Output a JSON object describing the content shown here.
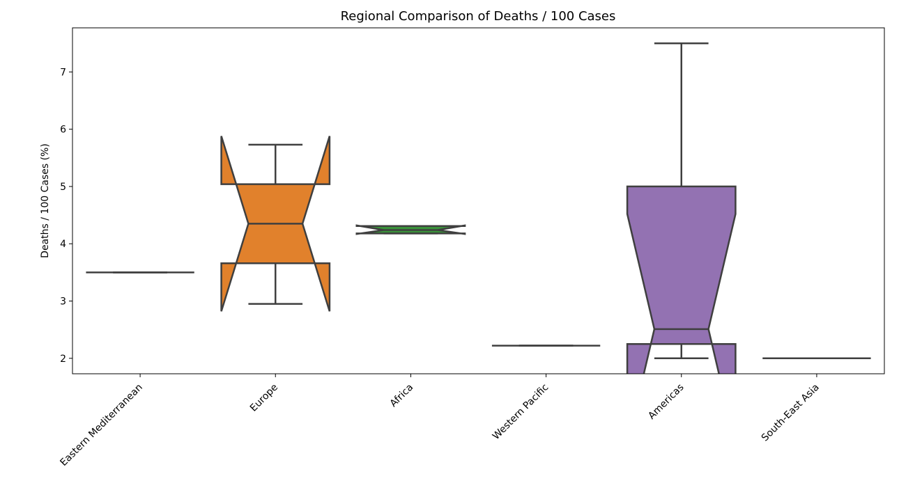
{
  "chart_data": {
    "type": "box",
    "notched": true,
    "title": "Regional Comparison of Deaths / 100 Cases",
    "xlabel": "",
    "ylabel": "Deaths / 100 Cases (%)",
    "ylim": [
      1.73,
      7.77
    ],
    "yticks": [
      2,
      3,
      4,
      5,
      6,
      7
    ],
    "grid": false,
    "categories": [
      "Eastern Mediterranean",
      "Europe",
      "Africa",
      "Western Pacific",
      "Americas",
      "South-East Asia"
    ],
    "boxes": [
      {
        "name": "Eastern Mediterranean",
        "color": "#3a75b0",
        "whisker_low": 3.5,
        "q1": 3.5,
        "median": 3.5,
        "q3": 3.5,
        "whisker_high": 3.5,
        "notch_low": 3.5,
        "notch_high": 3.5
      },
      {
        "name": "Europe",
        "color": "#e1812c",
        "whisker_low": 2.95,
        "q1": 3.66,
        "median": 4.35,
        "q3": 5.04,
        "whisker_high": 5.73,
        "notch_low": 2.82,
        "notch_high": 5.88
      },
      {
        "name": "Africa",
        "color": "#3a923a",
        "whisker_low": 4.18,
        "q1": 4.18,
        "median": 4.24,
        "q3": 4.31,
        "whisker_high": 4.31,
        "notch_low": 4.17,
        "notch_high": 4.32
      },
      {
        "name": "Western Pacific",
        "color": "#c03d3e",
        "whisker_low": 2.22,
        "q1": 2.22,
        "median": 2.22,
        "q3": 2.22,
        "whisker_high": 2.22,
        "notch_low": 2.22,
        "notch_high": 2.22
      },
      {
        "name": "Americas",
        "color": "#9372b2",
        "whisker_low": 2.0,
        "q1": 2.25,
        "median": 2.51,
        "q3": 5.0,
        "whisker_high": 7.5,
        "notch_low": 0.5,
        "notch_high": 4.52
      },
      {
        "name": "South-East Asia",
        "color": "#845b53",
        "whisker_low": 2.0,
        "q1": 2.0,
        "median": 2.0,
        "q3": 2.0,
        "whisker_high": 2.0,
        "notch_low": 2.0,
        "notch_high": 2.0
      }
    ],
    "line_color": "#3f3f3f"
  }
}
